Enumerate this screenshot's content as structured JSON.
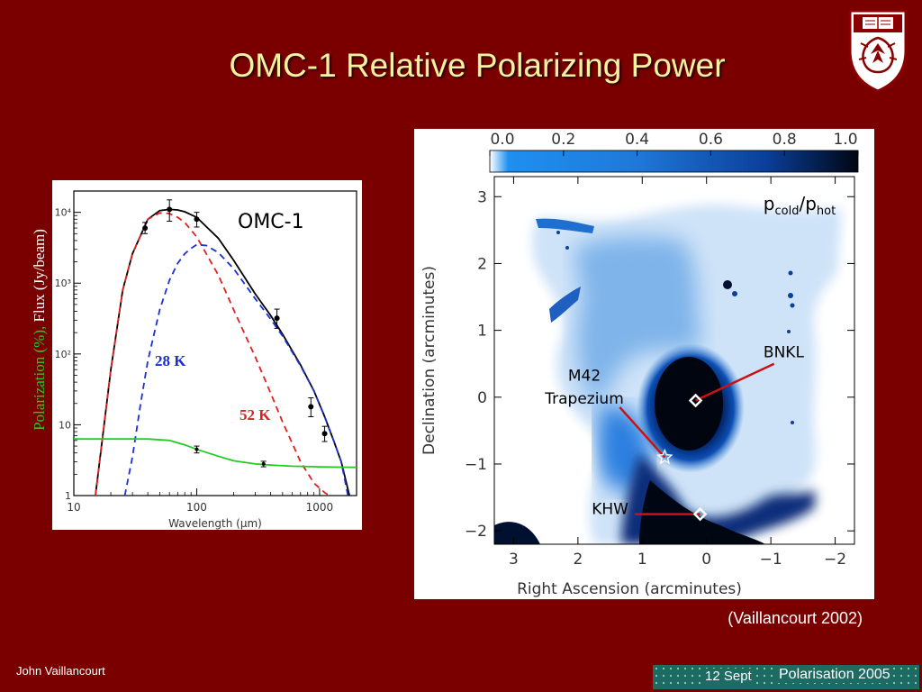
{
  "slide": {
    "title": "OMC-1 Relative Polarizing Power",
    "citation": "(Vaillancourt 2002)",
    "author": "John Vaillancourt",
    "footer_date": "12 Sept",
    "footer_conf": "Polarisation 2005"
  },
  "chart_data": [
    {
      "type": "line",
      "panel": "OMC-1 spectral energy distribution",
      "title": "OMC-1",
      "xlabel": "Wavelength (μm)",
      "ylabel_green": "Polarization (%),",
      "ylabel_black": "Flux (Jy/beam)",
      "x_scale": "log",
      "y_scale": "log",
      "xlim": [
        10,
        2000
      ],
      "ylim": [
        1,
        20000
      ],
      "x_ticks": [
        "10",
        "100",
        "1000"
      ],
      "y_ticks": [
        "1",
        "10",
        "10²",
        "10³",
        "10⁴"
      ],
      "annotations": [
        "28 K",
        "52 K"
      ],
      "colors": {
        "total": "#000000",
        "cold": "#1a2fd6",
        "hot": "#e02020",
        "polarization": "#22cc22"
      },
      "series": [
        {
          "name": "",
          "kind": "points",
          "color": "#000000",
          "x": [
            38,
            60,
            100,
            450,
            850,
            1100
          ],
          "y": [
            6000,
            11000,
            8000,
            320,
            18,
            7.5
          ],
          "err_lo": [
            5000,
            7500,
            6200,
            230,
            13,
            5.8
          ],
          "err_hi": [
            7200,
            15000,
            10000,
            430,
            24,
            9.5
          ]
        },
        {
          "name": "",
          "kind": "curve",
          "style": "solid",
          "color": "#000000",
          "x": [
            15,
            20,
            25,
            30,
            40,
            50,
            60,
            70,
            80,
            100,
            150,
            200,
            300,
            400,
            500,
            700,
            900,
            1100,
            1300,
            1500,
            1750
          ],
          "y": [
            1,
            60,
            800,
            2600,
            8000,
            10600,
            11000,
            10800,
            10200,
            8500,
            4300,
            2100,
            700,
            350,
            190,
            70,
            30,
            13,
            6,
            3,
            1
          ]
        },
        {
          "name": "",
          "kind": "curve",
          "style": "dashed",
          "color": "#e02020",
          "x": [
            15,
            20,
            25,
            30,
            40,
            50,
            60,
            70,
            80,
            100,
            150,
            200,
            300,
            400,
            500,
            700,
            900,
            1100,
            1200
          ],
          "y": [
            1,
            60,
            800,
            2600,
            8000,
            9800,
            9600,
            8500,
            7200,
            4500,
            1300,
            420,
            90,
            28,
            11,
            3,
            1.5,
            1.1,
            1
          ]
        },
        {
          "name": "",
          "kind": "curve",
          "style": "dashed",
          "color": "#1a2fd6",
          "x": [
            26,
            30,
            35,
            40,
            50,
            60,
            70,
            80,
            90,
            100,
            120,
            150,
            200,
            300,
            400,
            500,
            700,
            900,
            1100,
            1300,
            1500,
            1700
          ],
          "y": [
            1,
            3.5,
            20,
            80,
            420,
            1100,
            1900,
            2600,
            3100,
            3500,
            3400,
            2700,
            1600,
            600,
            310,
            180,
            68,
            30,
            13,
            6,
            3,
            1
          ]
        },
        {
          "name": "",
          "kind": "curve",
          "style": "solid",
          "color": "#22cc22",
          "x": [
            10,
            20,
            40,
            60,
            80,
            100,
            150,
            200,
            300,
            400,
            600,
            1000,
            2000
          ],
          "y": [
            6.3,
            6.3,
            6.3,
            6.0,
            5.2,
            4.5,
            3.6,
            3.1,
            2.8,
            2.7,
            2.6,
            2.55,
            2.5
          ]
        },
        {
          "name": "",
          "kind": "points",
          "color": "#22cc22",
          "x": [
            100,
            350
          ],
          "y": [
            4.5,
            2.8
          ],
          "err_lo": [
            4.0,
            2.55
          ],
          "err_hi": [
            5.0,
            3.05
          ]
        }
      ]
    },
    {
      "type": "heatmap",
      "panel": "Polarizing power ratio map",
      "legend_label": "pcold/phot",
      "colorbar_ticks": [
        "0.0",
        "0.2",
        "0.4",
        "0.6",
        "0.8",
        "1.0"
      ],
      "colorbar_range": [
        0.0,
        1.0
      ],
      "xlabel": "Right Ascension (arcminutes)",
      "ylabel": "Declination (arcminutes)",
      "xlim": [
        3.3,
        -2.3
      ],
      "ylim": [
        -2.2,
        3.3
      ],
      "x_ticks": [
        "3",
        "2",
        "1",
        "0",
        "−1",
        "−2"
      ],
      "y_ticks": [
        "3",
        "2",
        "1",
        "0",
        "−1",
        "−2"
      ],
      "labels": [
        {
          "text": "BNKL",
          "x": -1.2,
          "y": 0.6
        },
        {
          "text": "M42",
          "x": 1.9,
          "y": 0.25
        },
        {
          "text": "Trapezium",
          "x": 1.9,
          "y": -0.1
        },
        {
          "text": "KHW",
          "x": 1.5,
          "y": -1.75
        }
      ],
      "markers": [
        {
          "name": "BNKL",
          "shape": "diamond",
          "x": 0.17,
          "y": -0.05,
          "label_at": [
            -1.05,
            0.5
          ]
        },
        {
          "name": "KHW",
          "shape": "diamond",
          "x": 0.1,
          "y": -1.75,
          "label_at": [
            1.12,
            -1.75
          ]
        },
        {
          "name": "Trapezium",
          "shape": "star",
          "x": 0.65,
          "y": -0.9,
          "label_at": [
            1.35,
            -0.15
          ]
        }
      ],
      "colors": {
        "low": "#ffffff",
        "mid": "#3a86d9",
        "high": "#000612"
      }
    }
  ]
}
